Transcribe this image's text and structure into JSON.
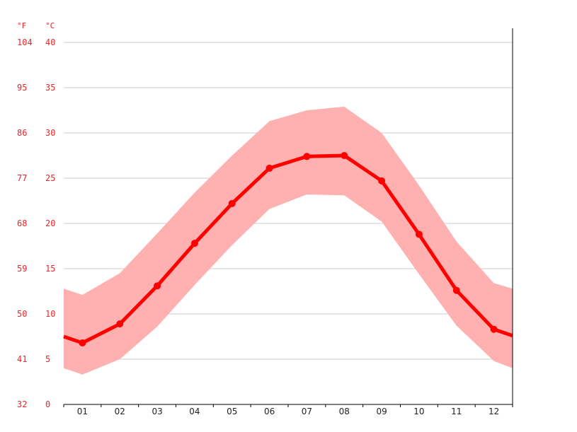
{
  "chart_data": {
    "type": "line",
    "units": {
      "fahrenheit": "°F",
      "celsius": "°C"
    },
    "categories": [
      "01",
      "02",
      "03",
      "04",
      "05",
      "06",
      "07",
      "08",
      "09",
      "10",
      "11",
      "12"
    ],
    "y_ticks_celsius": [
      "0",
      "5",
      "10",
      "15",
      "20",
      "25",
      "30",
      "35",
      "40"
    ],
    "y_ticks_fahrenheit": [
      "32",
      "41",
      "50",
      "59",
      "68",
      "77",
      "86",
      "95",
      "104"
    ],
    "ylim": [
      0,
      40
    ],
    "grid": true,
    "series": [
      {
        "role": "mean",
        "values": [
          6.8,
          8.9,
          13.1,
          17.8,
          22.2,
          26.1,
          27.4,
          27.5,
          24.7,
          18.8,
          12.6,
          8.3
        ]
      },
      {
        "role": "max",
        "values": [
          12.1,
          14.5,
          18.9,
          23.4,
          27.5,
          31.3,
          32.5,
          32.9,
          30.0,
          24.2,
          18.0,
          13.4
        ]
      },
      {
        "role": "min",
        "values": [
          3.3,
          5.0,
          8.6,
          13.2,
          17.6,
          21.6,
          23.2,
          23.1,
          20.2,
          14.4,
          8.7,
          4.8
        ]
      }
    ],
    "colors": {
      "line": "#ff0000",
      "band": "#ffb0b0",
      "grid": "#cccccc",
      "tick_text": "#e8262b",
      "axis": "#000000"
    },
    "edge_values": {
      "mean": [
        7.5,
        7.6
      ],
      "max": [
        12.8,
        12.8
      ],
      "min": [
        4.0,
        4.0
      ]
    }
  }
}
